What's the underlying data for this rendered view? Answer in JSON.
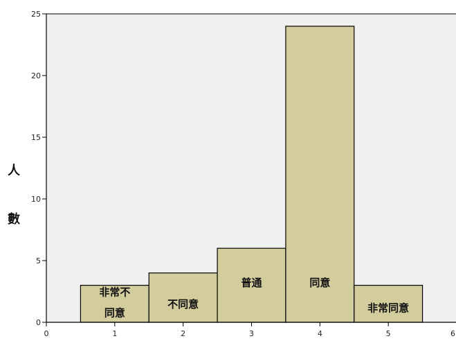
{
  "chart_data": {
    "type": "bar",
    "x": [
      1,
      2,
      3,
      4,
      5
    ],
    "values": [
      3,
      4,
      6,
      24,
      3
    ],
    "bar_labels": [
      [
        "非常不",
        "同意"
      ],
      [
        "不同意"
      ],
      [
        "普通"
      ],
      [
        "同意"
      ],
      [
        "非常同意"
      ]
    ],
    "ylabel_chars": [
      "人",
      "數"
    ],
    "xlim": [
      0,
      6
    ],
    "ylim": [
      0,
      25
    ],
    "xticks": [
      "0",
      "1",
      "2",
      "3",
      "4",
      "5",
      "6"
    ],
    "yticks": [
      "0",
      "5",
      "10",
      "15",
      "20",
      "25"
    ],
    "bar_color": "#d3cc9d",
    "plot_background": "#f0f0f0",
    "grid": false
  }
}
